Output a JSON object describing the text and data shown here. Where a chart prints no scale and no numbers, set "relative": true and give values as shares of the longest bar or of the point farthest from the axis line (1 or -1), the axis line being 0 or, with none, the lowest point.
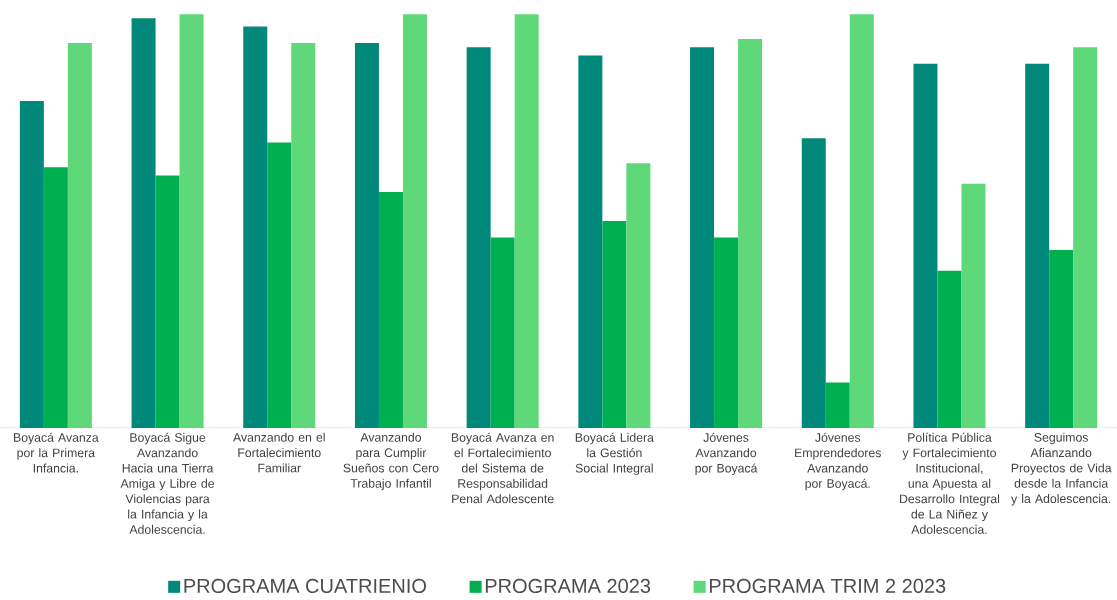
{
  "chart_data": {
    "type": "bar",
    "relative": true,
    "legend": "bottom",
    "categories": [
      "Boyacá Avanza por la Primera Infancia.",
      "Boyacá Sigue Avanzando Hacia una Tierra Amiga y Libre de Violencias para la Infancia y la Adolescencia.",
      "Avanzando en el Fortalecimiento Familiar",
      "Avanzando para Cumplir Sueños con Cero Trabajo Infantil",
      "Boyacá Avanza en el Fortalecimiento del Sistema de Responsabilidad Penal Adolescente",
      "Boyacá Lidera la Gestión Social Integral",
      "Jóvenes Avanzando por Boyacá",
      "Jóvenes Emprendedores Avanzando por Boyacá.",
      "Política Pública y Fortalecimiento Institucional, una Apuesta al Desarrollo Integral de La Niñez y Adolescencia.",
      "Seguimos Afianzando Proyectos de Vida desde la Infancia y la Adolescencia."
    ],
    "series": [
      {
        "name": "PROGRAMA CUATRIENIO",
        "color": "#00887a",
        "values": [
          0.79,
          0.99,
          0.97,
          0.93,
          0.92,
          0.9,
          0.92,
          0.7,
          0.88,
          0.88
        ]
      },
      {
        "name": "PROGRAMA  2023",
        "color": "#00b050",
        "values": [
          0.63,
          0.61,
          0.69,
          0.57,
          0.46,
          0.5,
          0.46,
          0.11,
          0.38,
          0.43
        ]
      },
      {
        "name": "PROGRAMA TRIM 2 2023",
        "color": "#5fd87a",
        "values": [
          0.93,
          1.0,
          0.93,
          1.0,
          1.0,
          0.64,
          0.94,
          1.0,
          0.59,
          0.92
        ]
      }
    ]
  }
}
